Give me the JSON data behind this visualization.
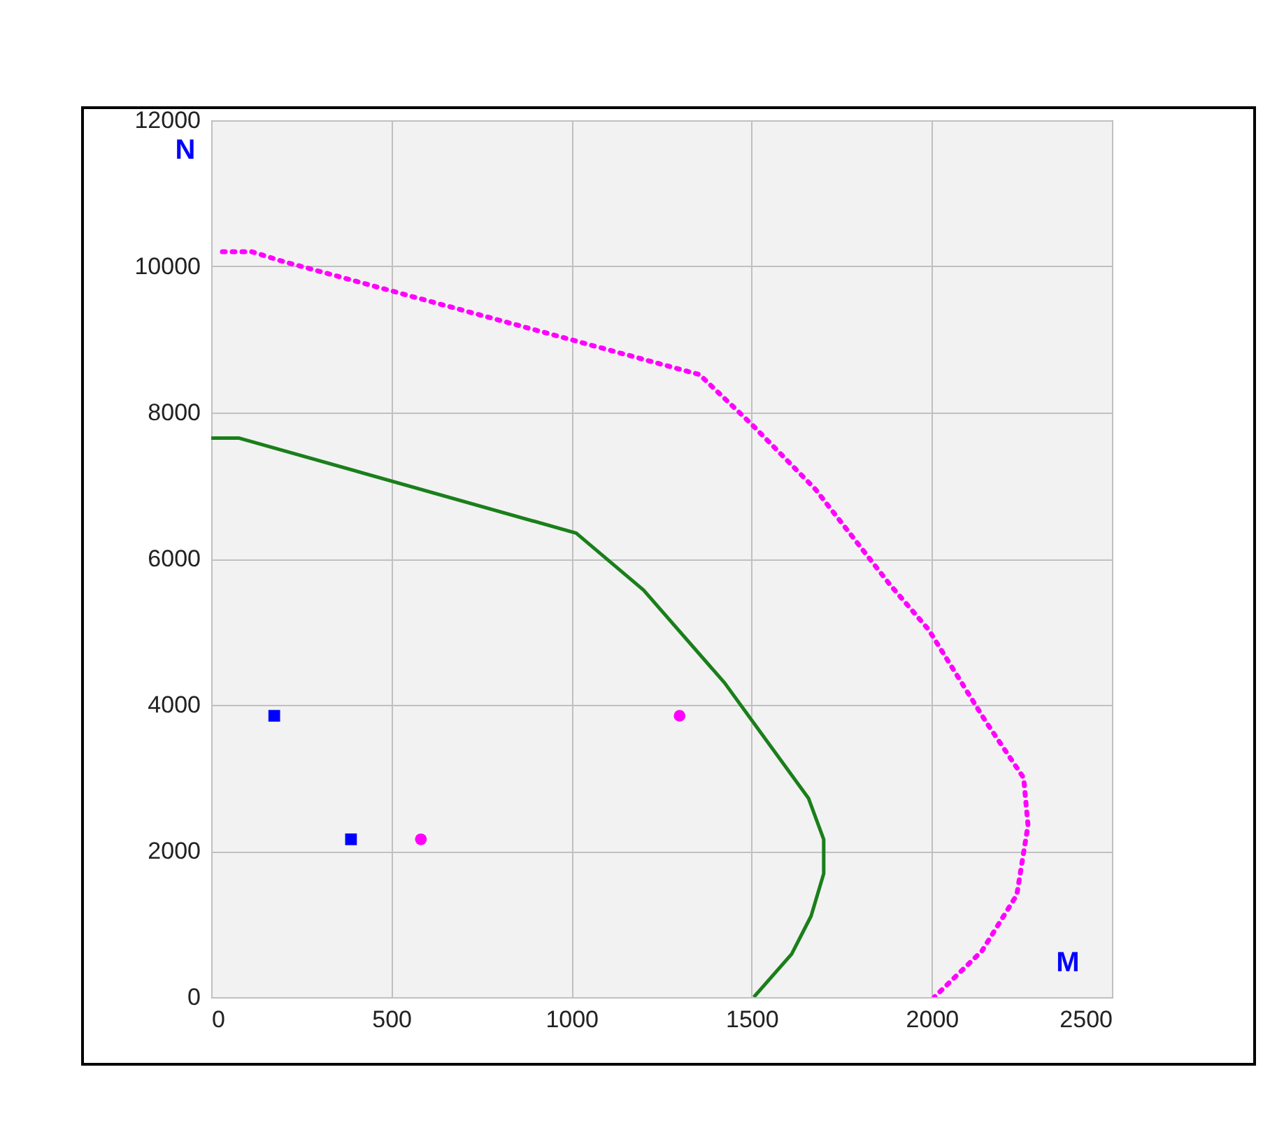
{
  "chart_data": {
    "type": "line",
    "xlabel": "M",
    "ylabel": "N",
    "xlim": [
      0,
      2500
    ],
    "ylim": [
      0,
      12000
    ],
    "xticks": [
      0,
      500,
      1000,
      1500,
      2000,
      2500
    ],
    "yticks": [
      0,
      2000,
      4000,
      6000,
      8000,
      10000,
      12000
    ],
    "grid": true,
    "series": [
      {
        "type": "line",
        "color": "#1a7f1a",
        "line_style": "solid",
        "x": [
          0,
          78,
          1013,
          1200,
          1425,
          1658,
          1700,
          1700,
          1665,
          1611,
          1506
        ],
        "values": [
          7650,
          7650,
          6350,
          5570,
          4300,
          2720,
          2160,
          1690,
          1110,
          590,
          0
        ]
      },
      {
        "type": "line",
        "color": "#ff00ff",
        "line_style": "dotted",
        "x": [
          31,
          113,
          198,
          1355,
          1498,
          1677,
          1883,
          1991,
          2150,
          2255,
          2267,
          2236,
          2139,
          2007
        ],
        "values": [
          10200,
          10200,
          10070,
          8520,
          7850,
          6950,
          5650,
          5030,
          3770,
          3000,
          2350,
          1400,
          630,
          0
        ]
      },
      {
        "type": "scatter",
        "color": "#0000ff",
        "marker": "square",
        "x": [
          175,
          388
        ],
        "values": [
          3850,
          2160
        ]
      },
      {
        "type": "scatter",
        "color": "#ff00ff",
        "marker": "circle",
        "x": [
          582,
          1300
        ],
        "values": [
          2160,
          3850
        ]
      }
    ]
  }
}
